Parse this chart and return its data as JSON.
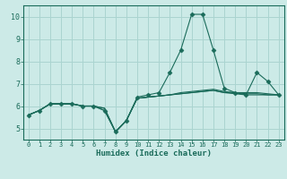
{
  "xlabel": "Humidex (Indice chaleur)",
  "bg_color": "#cceae7",
  "grid_color": "#aad4d0",
  "line_color": "#1a6b5a",
  "xlim": [
    -0.5,
    23.5
  ],
  "ylim": [
    4.5,
    10.5
  ],
  "xticks": [
    0,
    1,
    2,
    3,
    4,
    5,
    6,
    7,
    8,
    9,
    10,
    11,
    12,
    13,
    14,
    15,
    16,
    17,
    18,
    19,
    20,
    21,
    22,
    23
  ],
  "yticks": [
    5,
    6,
    7,
    8,
    9,
    10
  ],
  "series": [
    [
      5.6,
      5.8,
      6.1,
      6.1,
      6.1,
      6.0,
      6.0,
      5.9,
      4.85,
      5.35,
      6.35,
      6.4,
      6.45,
      6.5,
      6.55,
      6.6,
      6.65,
      6.7,
      6.6,
      6.55,
      6.5,
      6.5,
      6.5,
      6.5
    ],
    [
      5.6,
      5.8,
      6.1,
      6.1,
      6.1,
      6.0,
      6.0,
      5.9,
      4.85,
      5.35,
      6.35,
      6.4,
      6.45,
      6.5,
      6.55,
      6.6,
      6.65,
      6.7,
      6.6,
      6.6,
      6.6,
      6.6,
      6.55,
      6.5
    ],
    [
      5.6,
      5.8,
      6.1,
      6.1,
      6.1,
      6.0,
      6.0,
      5.8,
      4.85,
      5.35,
      6.35,
      6.4,
      6.45,
      6.5,
      6.6,
      6.65,
      6.7,
      6.75,
      6.65,
      6.6,
      6.55,
      6.55,
      6.5,
      6.5
    ],
    [
      5.6,
      5.8,
      6.1,
      6.1,
      6.1,
      6.0,
      6.0,
      5.8,
      4.85,
      5.35,
      6.4,
      6.5,
      6.6,
      7.5,
      8.5,
      10.1,
      10.1,
      8.5,
      6.8,
      6.6,
      6.5,
      7.5,
      7.1,
      6.5
    ]
  ]
}
